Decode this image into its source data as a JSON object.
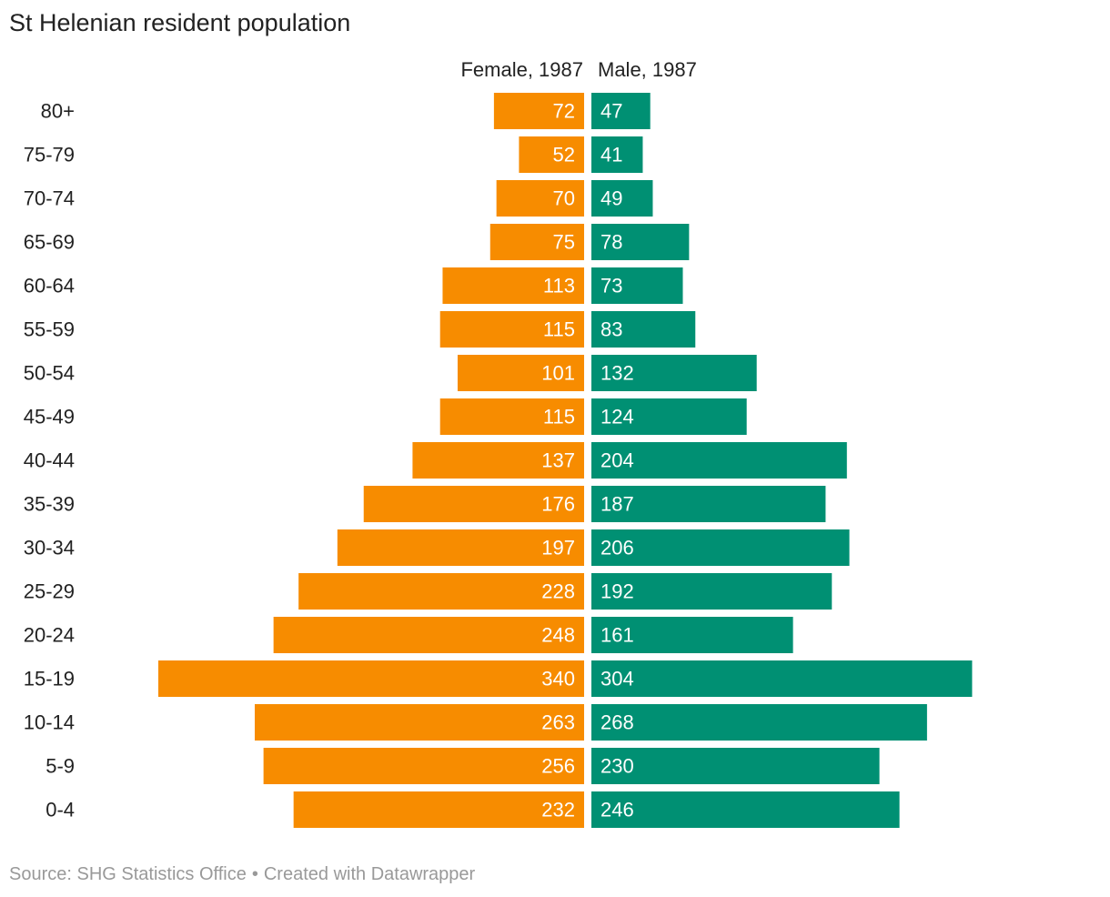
{
  "title": "St Helenian resident population",
  "footer": {
    "source": "Source: SHG Statistics Office",
    "separator": "•",
    "credit": "Created with Datawrapper"
  },
  "colors": {
    "female": "#f78c00",
    "male": "#009073",
    "label_on_bar": "#ffffff",
    "text": "#222222",
    "footer": "#999999"
  },
  "chart_data": {
    "type": "bar",
    "orientation": "horizontal",
    "layout": "population-pyramid",
    "title": "St Helenian resident population",
    "categories": [
      "80+",
      "75-79",
      "70-74",
      "65-69",
      "60-64",
      "55-59",
      "50-54",
      "45-49",
      "40-44",
      "35-39",
      "30-34",
      "25-29",
      "20-24",
      "15-19",
      "10-14",
      "5-9",
      "0-4"
    ],
    "series": [
      {
        "name": "Female, 1987",
        "side": "left",
        "values": [
          72,
          52,
          70,
          75,
          113,
          115,
          101,
          115,
          137,
          176,
          197,
          228,
          248,
          340,
          263,
          256,
          232
        ]
      },
      {
        "name": "Male, 1987",
        "side": "right",
        "values": [
          47,
          41,
          49,
          78,
          73,
          83,
          132,
          124,
          204,
          187,
          206,
          192,
          161,
          304,
          268,
          230,
          246
        ]
      }
    ],
    "xlim": [
      0,
      340
    ],
    "data_labels": true,
    "grid": false
  }
}
